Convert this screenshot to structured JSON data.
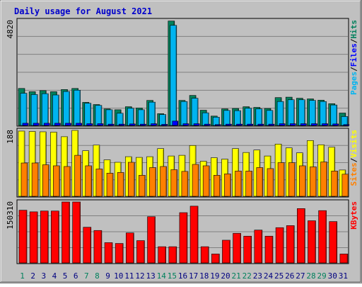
{
  "title": "Daily usage for August 2021",
  "colors": {
    "frame_bg": "#c0c0c0",
    "title": "#0000cc",
    "hits": "#00805c",
    "files": "#00b4f0",
    "pages": "#0000ff",
    "sites": "#ff8000",
    "visits": "#ffff00",
    "kbytes": "#ff0000",
    "weekday_label": "#000080",
    "weekend_label": "#00805c"
  },
  "chart_data": [
    {
      "type": "bar",
      "panel": "hits-files-pages",
      "ymax_label": "4820",
      "ylabel_parts": [
        "Pages",
        "/",
        "Files",
        "/",
        "Hits"
      ],
      "ymax": 4820,
      "x": [
        1,
        2,
        3,
        4,
        5,
        6,
        7,
        8,
        9,
        10,
        11,
        12,
        13,
        14,
        15,
        16,
        17,
        18,
        19,
        20,
        21,
        22,
        23,
        24,
        25,
        26,
        27,
        28,
        29,
        30,
        31
      ],
      "series": [
        {
          "name": "Hits",
          "values": [
            1700,
            1550,
            1600,
            1550,
            1650,
            1700,
            1060,
            960,
            760,
            720,
            860,
            800,
            1150,
            540,
            4800,
            1150,
            1380,
            700,
            430,
            760,
            780,
            860,
            830,
            780,
            1280,
            1300,
            1250,
            1220,
            1160,
            1000,
            570
          ]
        },
        {
          "name": "Files",
          "values": [
            1480,
            1420,
            1460,
            1400,
            1560,
            1620,
            1020,
            920,
            720,
            560,
            790,
            720,
            1070,
            500,
            4600,
            1100,
            1250,
            580,
            380,
            690,
            680,
            790,
            760,
            690,
            1100,
            1180,
            1180,
            1150,
            1100,
            940,
            410
          ]
        },
        {
          "name": "Pages",
          "values": [
            100,
            100,
            100,
            100,
            100,
            100,
            80,
            80,
            60,
            60,
            70,
            60,
            80,
            50,
            200,
            80,
            80,
            60,
            40,
            60,
            60,
            60,
            60,
            60,
            80,
            80,
            80,
            80,
            80,
            70,
            40
          ]
        }
      ]
    },
    {
      "type": "bar",
      "panel": "sites-visits",
      "ymax_label": "188",
      "ylabel_parts": [
        "Sites",
        "/",
        "Visits"
      ],
      "ymax": 188,
      "x": [
        1,
        2,
        3,
        4,
        5,
        6,
        7,
        8,
        9,
        10,
        11,
        12,
        13,
        14,
        15,
        16,
        17,
        18,
        19,
        20,
        21,
        22,
        23,
        24,
        25,
        26,
        27,
        28,
        29,
        30,
        31
      ],
      "series": [
        {
          "name": "Visits",
          "values": [
            186,
            185,
            184,
            183,
            170,
            188,
            130,
            146,
            104,
            97,
            113,
            111,
            113,
            136,
            115,
            117,
            145,
            100,
            110,
            106,
            136,
            125,
            132,
            115,
            149,
            138,
            124,
            159,
            147,
            140,
            75
          ]
        },
        {
          "name": "Sites",
          "values": [
            95,
            95,
            90,
            87,
            85,
            117,
            87,
            78,
            66,
            68,
            97,
            60,
            82,
            85,
            76,
            71,
            91,
            87,
            60,
            64,
            72,
            72,
            82,
            79,
            96,
            96,
            87,
            84,
            98,
            72,
            63
          ]
        }
      ]
    },
    {
      "type": "bar",
      "panel": "kbytes",
      "ymax_label": "150310",
      "ylabel_parts": [
        "KBytes"
      ],
      "ymax": 150310,
      "x": [
        1,
        2,
        3,
        4,
        5,
        6,
        7,
        8,
        9,
        10,
        11,
        12,
        13,
        14,
        15,
        16,
        17,
        18,
        19,
        20,
        21,
        22,
        23,
        24,
        25,
        26,
        27,
        28,
        29,
        30,
        31
      ],
      "series": [
        {
          "name": "KBytes",
          "values": [
            130000,
            126000,
            128000,
            128000,
            150310,
            150310,
            88000,
            80000,
            50000,
            48000,
            74000,
            55000,
            114000,
            40000,
            40000,
            124000,
            140000,
            40000,
            22000,
            56000,
            73000,
            66000,
            81000,
            66000,
            87000,
            92000,
            134000,
            104000,
            129000,
            102000,
            22000
          ]
        }
      ]
    }
  ],
  "x_labels": [
    "1",
    "2",
    "3",
    "4",
    "5",
    "6",
    "7",
    "8",
    "9",
    "10",
    "11",
    "12",
    "13",
    "14",
    "15",
    "16",
    "17",
    "18",
    "19",
    "20",
    "21",
    "22",
    "23",
    "24",
    "25",
    "26",
    "27",
    "28",
    "29",
    "30",
    "31"
  ],
  "weekend_days": [
    1,
    7,
    8,
    14,
    15,
    21,
    22,
    28,
    29
  ]
}
